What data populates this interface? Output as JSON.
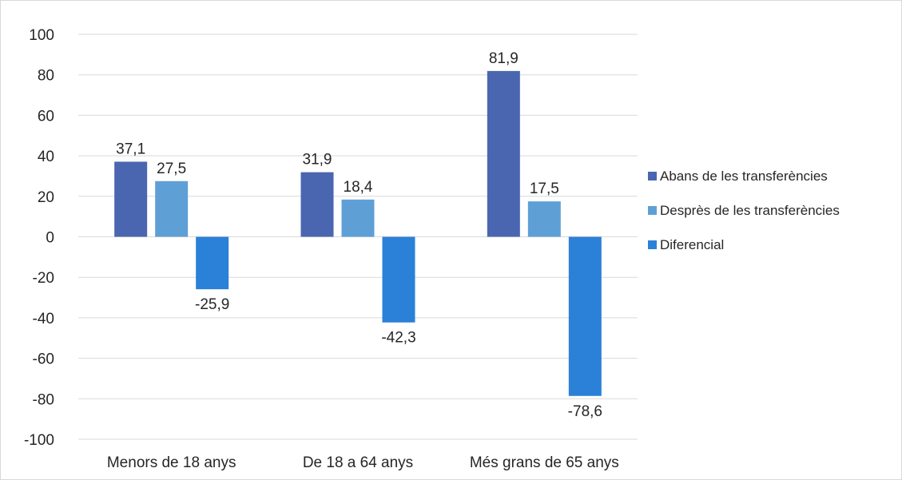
{
  "chart_data": {
    "type": "bar",
    "categories": [
      "Menors de 18 anys",
      "De 18 a 64 anys",
      "Més grans de 65 anys"
    ],
    "series": [
      {
        "name": "Abans de les transferències",
        "values": [
          37.1,
          31.9,
          81.9
        ],
        "labels": [
          "37,1",
          "31,9",
          "81,9"
        ],
        "color": "#4a66b0"
      },
      {
        "name": "Desprès de les transferències",
        "values": [
          27.5,
          18.4,
          17.5
        ],
        "labels": [
          "27,5",
          "18,4",
          "17,5"
        ],
        "color": "#5ea0d6"
      },
      {
        "name": "Diferencial",
        "values": [
          -25.9,
          -42.3,
          -78.6
        ],
        "labels": [
          "-25,9",
          "-42,3",
          "-78,6"
        ],
        "color": "#2b80d8"
      }
    ],
    "yticks": [
      100,
      80,
      60,
      40,
      20,
      0,
      -20,
      -40,
      -60,
      -80,
      -100
    ],
    "ytick_labels": [
      "100",
      "80",
      "60",
      "40",
      "20",
      "0",
      "-20",
      "-40",
      "-60",
      "-80",
      "-100"
    ],
    "ylim": [
      -100,
      100
    ],
    "grid": true,
    "legend": "right",
    "title": "",
    "xlabel": "",
    "ylabel": ""
  }
}
